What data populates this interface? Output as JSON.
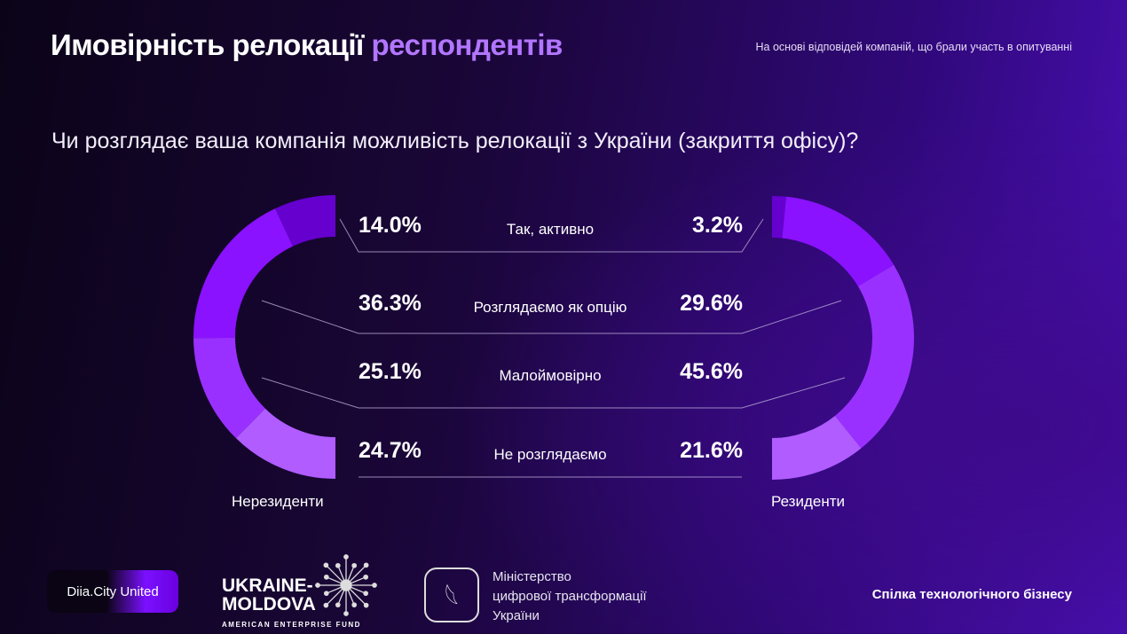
{
  "header": {
    "title_part1": "Имовірність релокації",
    "title_part2": "респондентів",
    "subtitle": "На основі відповідей компаній, що брали участь в опитуванні"
  },
  "chart_data": {
    "type": "pie",
    "title": "Чи розглядає ваша компанія можливість релокації з України (закриття офісу)?",
    "categories": [
      "Так, активно",
      "Розглядаємо як опцію",
      "Малоймовірно",
      "Не розглядаємо"
    ],
    "series": [
      {
        "name": "Нерезиденти",
        "values": [
          14.0,
          36.3,
          25.1,
          24.7
        ],
        "labels": [
          "14.0%",
          "36.3%",
          "25.1%",
          "24.7%"
        ],
        "colors": [
          "#6500cf",
          "#8a12ff",
          "#9a30ff",
          "#b05cff"
        ]
      },
      {
        "name": "Резиденти",
        "values": [
          3.2,
          29.6,
          45.6,
          21.6
        ],
        "labels": [
          "3.2%",
          "29.6%",
          "45.6%",
          "21.6%"
        ],
        "colors": [
          "#6500cf",
          "#8a12ff",
          "#9a30ff",
          "#b05cff"
        ]
      }
    ]
  },
  "footer": {
    "diia": "Diia.City United",
    "um_line1": "UKRAINE-",
    "um_line2": "MOLDOVA",
    "um_line3": "AMERICAN ENTERPRISE FUND",
    "ministry_line1": "Міністерство",
    "ministry_line2": "цифрової трансформації",
    "ministry_line3": "України",
    "spilka": "Спілка технологічного бізнесу"
  }
}
